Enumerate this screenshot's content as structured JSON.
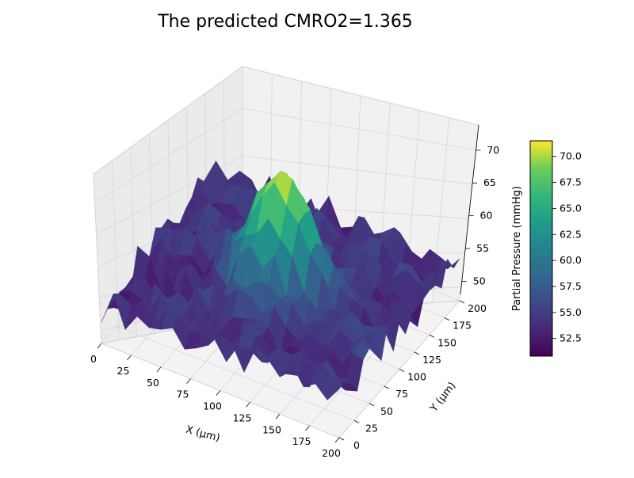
{
  "chart_data": {
    "type": "surface3d",
    "title": "The predicted CMRO2=1.365",
    "xlabel": "X (μm)",
    "ylabel": "Y (μm)",
    "zlabel": "",
    "colorbar_label": "Partial Pressure (mmHg)",
    "colormap": "viridis",
    "xlim": [
      0,
      200
    ],
    "ylim": [
      0,
      200
    ],
    "zlim": [
      48,
      73
    ],
    "x_ticks": [
      "0",
      "25",
      "50",
      "75",
      "100",
      "125",
      "150",
      "175",
      "200"
    ],
    "y_ticks": [
      "0",
      "25",
      "50",
      "75",
      "100",
      "125",
      "150",
      "175",
      "200"
    ],
    "z_ticks": [
      "50",
      "55",
      "60",
      "65",
      "70"
    ],
    "colorbar_range": [
      50.8,
      71.5
    ],
    "colorbar_ticks": [
      "52.5",
      "55.0",
      "57.5",
      "60.0",
      "62.5",
      "65.0",
      "67.5",
      "70.0"
    ],
    "peak": {
      "x": 100,
      "y": 100,
      "z": 71.5
    },
    "background_level": 54,
    "grid": true
  }
}
